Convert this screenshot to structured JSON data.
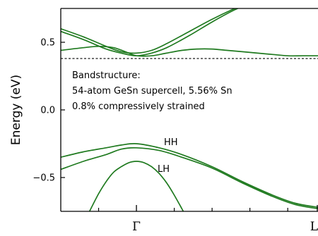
{
  "chart_data": {
    "type": "line",
    "title": "",
    "xlabel": "",
    "ylabel": "Energy (eV)",
    "xlim": [
      -1,
      2.4
    ],
    "ylim": [
      -0.75,
      0.75
    ],
    "x_kpoints": [
      {
        "label": "Γ",
        "x": 0
      },
      {
        "label": "L",
        "x": 2.4
      }
    ],
    "x_minor_ticks": [
      -0.5,
      0.5,
      1.0,
      1.5,
      2.0
    ],
    "y_ticks": [
      {
        "value": 0.5,
        "label": "0.5"
      },
      {
        "value": 0.0,
        "label": "0.0"
      },
      {
        "value": -0.5,
        "label": "−0.5"
      }
    ],
    "fermi_level": 0.38,
    "band_color": "#1f7a1f",
    "bands": [
      {
        "x": [
          -1.0,
          -0.7,
          -0.4,
          -0.2,
          0.0,
          0.2,
          0.4,
          0.7,
          1.0,
          1.3,
          1.6
        ],
        "y": [
          0.6,
          0.54,
          0.47,
          0.43,
          0.42,
          0.44,
          0.49,
          0.58,
          0.67,
          0.75,
          0.82
        ]
      },
      {
        "x": [
          -1.0,
          -0.7,
          -0.4,
          -0.2,
          0.0,
          0.2,
          0.4,
          0.7,
          1.0,
          1.3,
          1.6
        ],
        "y": [
          0.58,
          0.52,
          0.45,
          0.42,
          0.4,
          0.42,
          0.46,
          0.55,
          0.65,
          0.74,
          0.81
        ]
      },
      {
        "x": [
          -1.0,
          -0.7,
          -0.5,
          -0.3,
          -0.1,
          0.0,
          0.2,
          0.4,
          0.6,
          0.8,
          1.0,
          1.2,
          1.4,
          1.6,
          1.8,
          2.0,
          2.2,
          2.4
        ],
        "y": [
          0.44,
          0.46,
          0.47,
          0.46,
          0.42,
          0.4,
          0.4,
          0.42,
          0.44,
          0.45,
          0.45,
          0.44,
          0.43,
          0.42,
          0.41,
          0.4,
          0.4,
          0.4
        ]
      },
      {
        "x": [
          -1.0,
          -0.7,
          -0.4,
          -0.2,
          0.0,
          0.3,
          0.6,
          1.0,
          1.4,
          1.8,
          2.1,
          2.4
        ],
        "y": [
          -0.35,
          -0.31,
          -0.28,
          -0.26,
          -0.25,
          -0.28,
          -0.33,
          -0.42,
          -0.53,
          -0.63,
          -0.69,
          -0.72
        ]
      },
      {
        "x": [
          -1.0,
          -0.7,
          -0.4,
          -0.2,
          0.0,
          0.3,
          0.6,
          1.0,
          1.4,
          1.8,
          2.1,
          2.4
        ],
        "y": [
          -0.44,
          -0.38,
          -0.33,
          -0.29,
          -0.28,
          -0.3,
          -0.35,
          -0.43,
          -0.54,
          -0.64,
          -0.7,
          -0.73
        ]
      },
      {
        "x": [
          -0.62,
          -0.5,
          -0.4,
          -0.3,
          -0.2,
          -0.1,
          0.0,
          0.1,
          0.2,
          0.3,
          0.4,
          0.5,
          0.62
        ],
        "y": [
          -0.75,
          -0.62,
          -0.53,
          -0.46,
          -0.42,
          -0.39,
          -0.38,
          -0.39,
          -0.42,
          -0.47,
          -0.54,
          -0.63,
          -0.75
        ]
      }
    ],
    "annotations": {
      "line1": "Bandstructure:",
      "line2": "54-atom GeSn supercell, 5.56% Sn",
      "line3": "0.8% compressively strained",
      "hh_label": "HH",
      "lh_label": "LH"
    }
  }
}
